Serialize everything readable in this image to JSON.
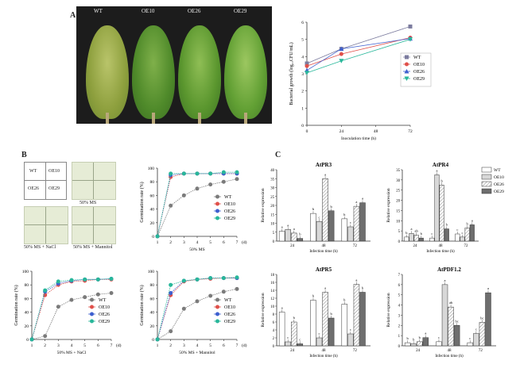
{
  "panels": {
    "A": {
      "label": "A",
      "photo_labels": [
        "WT",
        "OE10",
        "OE26",
        "OE29"
      ]
    },
    "B": {
      "label": "B",
      "grid_cells": [
        "WT",
        "OE10",
        "OE26",
        "OE29"
      ],
      "dish_labels": [
        "50% MS",
        "50% MS + NaCl",
        "50% MS + Mannitol"
      ]
    },
    "C": {
      "label": "C"
    }
  },
  "chart_data": [
    {
      "id": "bacterial-growth",
      "type": "line",
      "ylabel": "Bacterial growth (log₁₀CFU/mL)",
      "xlabel": "Inoculation time (h)",
      "x": [
        0,
        24,
        72
      ],
      "xticks": [
        0,
        24,
        48,
        72
      ],
      "ylim": [
        0,
        6
      ],
      "yticks": [
        0,
        1,
        2,
        3,
        4,
        5,
        6
      ],
      "series": [
        {
          "name": "WT",
          "color": "#7b7b9e",
          "marker": "square",
          "values": [
            3.6,
            4.45,
            5.75
          ]
        },
        {
          "name": "OE10",
          "color": "#e0504a",
          "marker": "circle",
          "values": [
            3.45,
            4.15,
            5.1
          ]
        },
        {
          "name": "OE26",
          "color": "#3d5fcf",
          "marker": "triangle",
          "values": [
            3.2,
            4.45,
            5.05
          ]
        },
        {
          "name": "OE29",
          "color": "#28b79a",
          "marker": "tridown",
          "values": [
            3.05,
            3.75,
            5.0
          ]
        }
      ],
      "legend": "right"
    },
    {
      "id": "germ-ms",
      "type": "line",
      "ylabel": "Germination rate (%)",
      "xlabel": "50% MS",
      "unit": "(d)",
      "x": [
        1,
        2,
        3,
        4,
        5,
        6,
        7
      ],
      "ylim": [
        0,
        100
      ],
      "yticks": [
        0,
        20,
        40,
        60,
        80,
        100
      ],
      "series": [
        {
          "name": "WT",
          "color": "#7b7b7b",
          "values": [
            0,
            45,
            60,
            70,
            76,
            80,
            84
          ]
        },
        {
          "name": "OE10",
          "color": "#e0504a",
          "values": [
            0,
            87,
            92,
            92,
            92,
            92,
            92
          ]
        },
        {
          "name": "OE26",
          "color": "#3d5fcf",
          "values": [
            0,
            90,
            92,
            92,
            92,
            92,
            92
          ]
        },
        {
          "name": "OE29",
          "color": "#28b79a",
          "values": [
            0,
            92,
            92,
            92,
            92,
            94,
            94
          ]
        }
      ],
      "legend": "right"
    },
    {
      "id": "germ-nacl",
      "type": "line",
      "ylabel": "Germination rate (%)",
      "xlabel": "50% MS + NaCl",
      "unit": "(d)",
      "x": [
        1,
        2,
        3,
        4,
        5,
        6,
        7
      ],
      "ylim": [
        0,
        100
      ],
      "yticks": [
        0,
        20,
        40,
        60,
        80,
        100
      ],
      "series": [
        {
          "name": "WT",
          "color": "#7b7b7b",
          "values": [
            0,
            5,
            48,
            58,
            62,
            66,
            68
          ]
        },
        {
          "name": "OE10",
          "color": "#e0504a",
          "values": [
            0,
            65,
            80,
            85,
            86,
            88,
            88
          ]
        },
        {
          "name": "OE26",
          "color": "#3d5fcf",
          "values": [
            0,
            70,
            82,
            86,
            88,
            88,
            89
          ]
        },
        {
          "name": "OE29",
          "color": "#28b79a",
          "values": [
            0,
            72,
            85,
            87,
            88,
            88,
            89
          ]
        }
      ],
      "legend": "right"
    },
    {
      "id": "germ-mannitol",
      "type": "line",
      "ylabel": "Germination rate (%)",
      "xlabel": "50% MS + Mannitol",
      "unit": "(d)",
      "x": [
        1,
        2,
        3,
        4,
        5,
        6,
        7
      ],
      "ylim": [
        0,
        100
      ],
      "yticks": [
        0,
        20,
        40,
        60,
        80,
        100
      ],
      "series": [
        {
          "name": "WT",
          "color": "#7b7b7b",
          "values": [
            0,
            12,
            45,
            56,
            64,
            70,
            74
          ]
        },
        {
          "name": "OE10",
          "color": "#e0504a",
          "values": [
            0,
            65,
            85,
            88,
            89,
            90,
            90
          ]
        },
        {
          "name": "OE26",
          "color": "#3d5fcf",
          "values": [
            0,
            68,
            86,
            88,
            90,
            90,
            90
          ]
        },
        {
          "name": "OE29",
          "color": "#28b79a",
          "values": [
            0,
            80,
            86,
            88,
            90,
            90,
            91
          ]
        }
      ],
      "legend": "right"
    },
    {
      "id": "AtPR3",
      "type": "bar",
      "title": "AtPR3",
      "categories": [
        "24",
        "48",
        "72"
      ],
      "ylabel": "Relative expression",
      "xlabel": "Infection time (h)",
      "ylim": [
        0,
        40
      ],
      "yticks": [
        0,
        5,
        10,
        15,
        20,
        25,
        30,
        35,
        40
      ],
      "series": [
        {
          "name": "WT",
          "values": [
            5.5,
            15.5,
            12.5
          ],
          "letters": [
            "a",
            "b",
            "b"
          ]
        },
        {
          "name": "OE10",
          "values": [
            6.5,
            11,
            8
          ],
          "letters": [
            "a",
            "c",
            "c"
          ]
        },
        {
          "name": "OE26",
          "values": [
            4.5,
            35,
            19.5
          ],
          "letters": [
            "a",
            "a",
            "a"
          ]
        },
        {
          "name": "OE29",
          "values": [
            1.5,
            17,
            21.5
          ],
          "letters": [
            "b",
            "b",
            "a"
          ]
        }
      ]
    },
    {
      "id": "AtPR4",
      "type": "bar",
      "title": "AtPR4",
      "categories": [
        "24",
        "48",
        "72"
      ],
      "ylabel": "Relative expression",
      "xlabel": "Infection time (h)",
      "ylim": [
        0,
        35
      ],
      "yticks": [
        0,
        5,
        10,
        15,
        20,
        25,
        30,
        35
      ],
      "series": [
        {
          "name": "WT",
          "values": [
            2,
            1.5,
            3.5
          ],
          "letters": [
            "b",
            "c",
            "c"
          ]
        },
        {
          "name": "OE10",
          "values": [
            3.8,
            32.5,
            2
          ],
          "letters": [
            "a",
            "a",
            "c"
          ]
        },
        {
          "name": "OE26",
          "values": [
            3,
            27.5,
            6.5
          ],
          "letters": [
            "ab",
            "b",
            "b"
          ]
        },
        {
          "name": "OE29",
          "values": [
            1.5,
            6,
            8
          ],
          "letters": [
            "b",
            "b",
            "a"
          ]
        }
      ]
    },
    {
      "id": "AtPR5",
      "type": "bar",
      "title": "AtPR5",
      "categories": [
        "24",
        "48",
        "72"
      ],
      "ylabel": "Relative expression",
      "xlabel": "Infection time (h)",
      "ylim": [
        0,
        18
      ],
      "yticks": [
        0,
        2,
        4,
        6,
        8,
        10,
        12,
        14,
        16,
        18
      ],
      "series": [
        {
          "name": "WT",
          "values": [
            8.5,
            11.5,
            10.5
          ],
          "letters": [
            "a",
            "b",
            "b"
          ]
        },
        {
          "name": "OE10",
          "values": [
            1,
            2,
            3
          ],
          "letters": [
            "c",
            "c",
            "c"
          ]
        },
        {
          "name": "OE26",
          "values": [
            6,
            13.5,
            15.5
          ],
          "letters": [
            "b",
            "a",
            "a"
          ]
        },
        {
          "name": "OE29",
          "values": [
            0.5,
            7,
            13.5
          ],
          "letters": [
            "c",
            "b",
            "b"
          ]
        }
      ]
    },
    {
      "id": "AtPDF12",
      "type": "bar",
      "title": "AtPDF1.2",
      "categories": [
        "24",
        "48",
        "72"
      ],
      "ylabel": "Relative expression",
      "xlabel": "Infection time (h)",
      "ylim": [
        0,
        7
      ],
      "yticks": [
        0,
        1,
        2,
        3,
        4,
        5,
        6,
        7
      ],
      "series": [
        {
          "name": "WT",
          "values": [
            0.3,
            0.4,
            0.3
          ],
          "letters": [
            "b",
            "c",
            "c"
          ]
        },
        {
          "name": "OE10",
          "values": [
            0.2,
            6,
            1.2
          ],
          "letters": [
            "b",
            "a",
            "c"
          ]
        },
        {
          "name": "OE26",
          "values": [
            0.4,
            3.8,
            2.3
          ],
          "letters": [
            "b",
            "ab",
            "bc"
          ]
        },
        {
          "name": "OE29",
          "values": [
            0.8,
            2,
            5.2
          ],
          "letters": [
            "a",
            "bc",
            "a"
          ]
        }
      ]
    }
  ],
  "bar_legend": [
    "WT",
    "OE10",
    "OE26",
    "OE29"
  ],
  "colors": {
    "WT": "#7b7b9e",
    "OE10": "#e0504a",
    "OE26": "#3d5fcf",
    "OE29": "#28b79a"
  }
}
